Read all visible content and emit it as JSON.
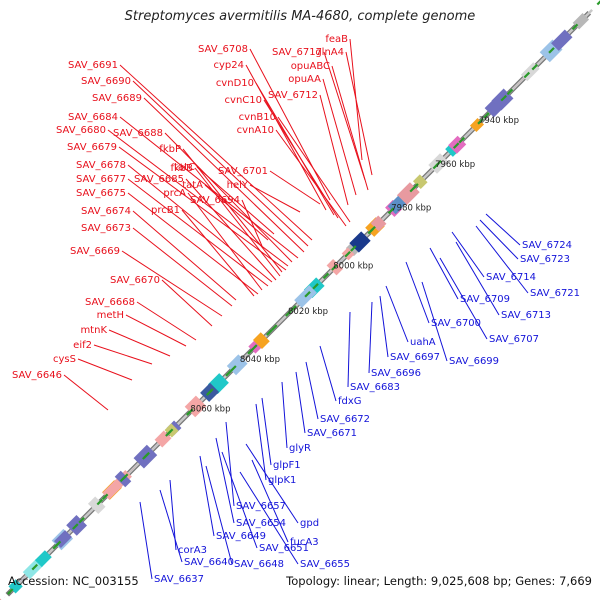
{
  "title": "Streptomyces avermitilis MA-4680, complete genome",
  "footer": {
    "accession": "Accession: NC_003155",
    "summary": "Topology: linear; Length: 9,025,608 bp; Genes: 7,669"
  },
  "colors": {
    "top_labels": "#e8101c",
    "bottom_labels": "#1313d9",
    "backbone": "#8c8c8c",
    "tick": "#2a9a2a"
  },
  "scale_labels": [
    "7940 kbp",
    "7960 kbp",
    "7980 kbp",
    "8000 kbp",
    "8020 kbp",
    "8040 kbp",
    "8060 kbp"
  ],
  "top_genes": [
    "feaB",
    "glnA4",
    "SAV_6717",
    "opuABC",
    "opuAA",
    "SAV_6712",
    "SAV_6708",
    "cyp24",
    "cvnD10",
    "cvnC10",
    "cvnB10",
    "cvnA10",
    "SAV_6691",
    "SAV_6690",
    "SAV_6689",
    "SAV_6684",
    "SAV_6688",
    "SAV_6680",
    "SAV_6679",
    "fkbP",
    "fkbB",
    "SAV_6685",
    "SAV_6678",
    "SAV_6677",
    "prcA",
    "SAV_6675",
    "prcB1",
    "tatC",
    "tatA",
    "SAV_6694",
    "SAV_6701",
    "helY",
    "SAV_6674",
    "SAV_6673",
    "SAV_6669",
    "SAV_6670",
    "SAV_6668",
    "metH",
    "mtnK",
    "eif2",
    "cysS",
    "SAV_6646"
  ],
  "bottom_genes": [
    "SAV_6724",
    "SAV_6723",
    "SAV_6714",
    "SAV_6721",
    "SAV_6709",
    "SAV_6713",
    "SAV_6700",
    "SAV_6707",
    "uahA",
    "SAV_6697",
    "SAV_6699",
    "SAV_6696",
    "SAV_6683",
    "fdxG",
    "SAV_6672",
    "SAV_6671",
    "glyR",
    "glpF1",
    "glpK1",
    "SAV_6657",
    "gpd",
    "SAV_6654",
    "SAV_6651",
    "fucA3",
    "SAV_6649",
    "SAV_6648",
    "SAV_6655",
    "corA3",
    "SAV_6640",
    "SAV_6637"
  ]
}
